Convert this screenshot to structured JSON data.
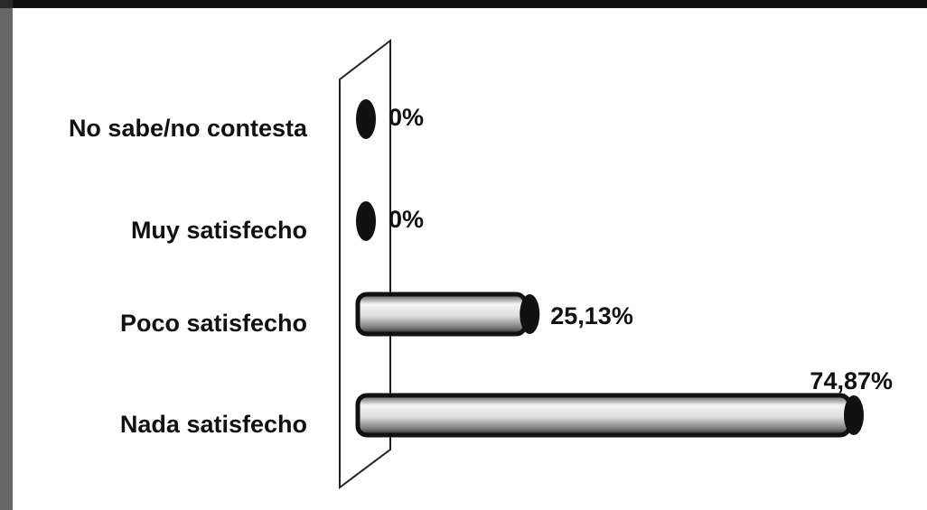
{
  "chart_data": {
    "type": "bar",
    "orientation": "horizontal",
    "categories": [
      "No sabe/no contesta",
      "Muy satisfecho",
      "Poco satisfecho",
      "Nada satisfecho"
    ],
    "values": [
      0,
      0,
      25.13,
      74.87
    ],
    "value_labels": [
      "0%",
      "0%",
      "25,13%",
      "74,87%"
    ],
    "color": "#111111"
  }
}
